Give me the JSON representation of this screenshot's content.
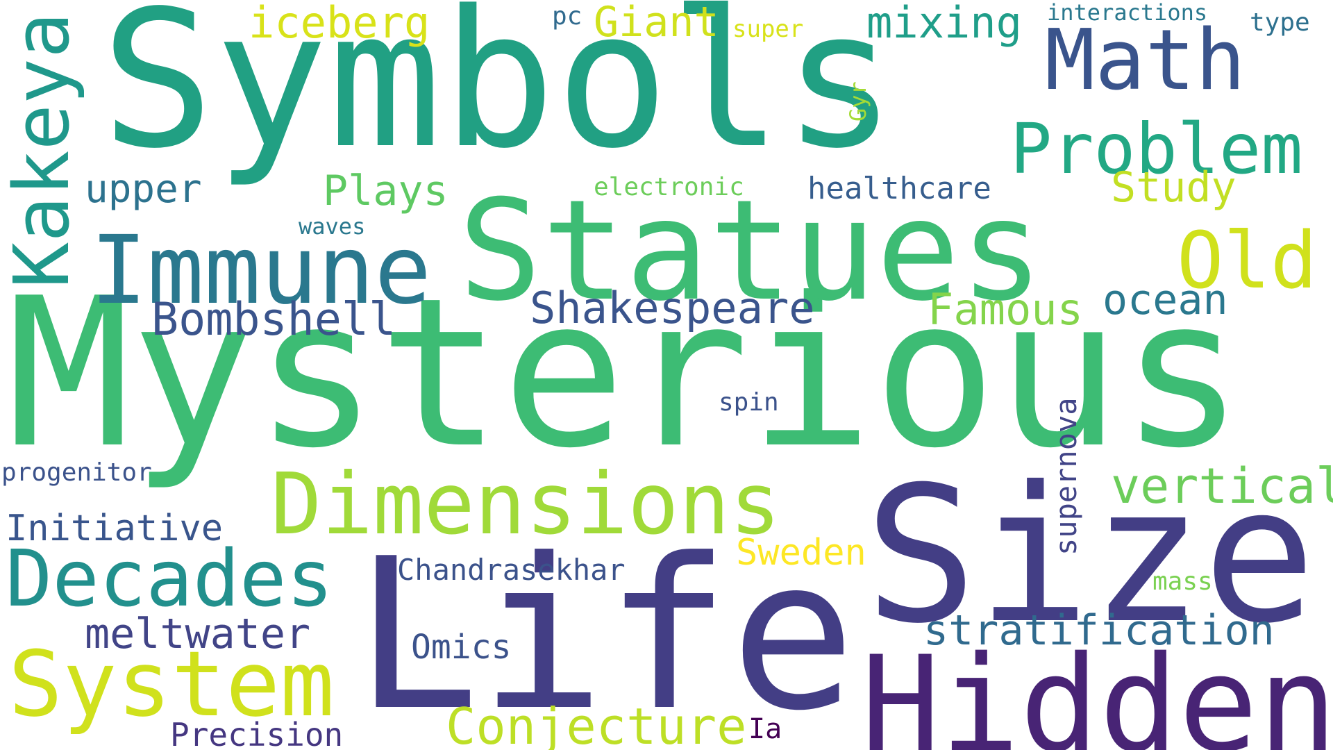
{
  "words": [
    {
      "key": "symbols",
      "text": "Symbols",
      "color": "#21a083"
    },
    {
      "key": "mysterious",
      "text": "Mysterious",
      "color": "#3dbc74"
    },
    {
      "key": "size",
      "text": "Size",
      "color": "#433e85"
    },
    {
      "key": "life",
      "text": "Life",
      "color": "#433e85"
    },
    {
      "key": "hidden",
      "text": "Hidden",
      "color": "#482475"
    },
    {
      "key": "statues",
      "text": "Statues",
      "color": "#3dbc74"
    },
    {
      "key": "dimensions",
      "text": "Dimensions",
      "color": "#a0da39"
    },
    {
      "key": "immune",
      "text": "Immune",
      "color": "#2a788e"
    },
    {
      "key": "decades",
      "text": "Decades",
      "color": "#22908d"
    },
    {
      "key": "system",
      "text": "System",
      "color": "#d0e11c"
    },
    {
      "key": "math",
      "text": "Math",
      "color": "#3a548c"
    },
    {
      "key": "problem",
      "text": "Problem",
      "color": "#22a884"
    },
    {
      "key": "kakeya",
      "text": "Kakeya",
      "color": "#1f988b"
    },
    {
      "key": "old",
      "text": "Old",
      "color": "#d0e11c"
    },
    {
      "key": "conjecture",
      "text": "Conjecture",
      "color": "#bddf26"
    },
    {
      "key": "vertical",
      "text": "vertical",
      "color": "#6ccd5a"
    },
    {
      "key": "stratification",
      "text": "stratification",
      "color": "#306a8e"
    },
    {
      "key": "bombshell",
      "text": "Bombshell",
      "color": "#3a548c"
    },
    {
      "key": "shakespeare",
      "text": "Shakespeare",
      "color": "#3a548c"
    },
    {
      "key": "meltwater",
      "text": "meltwater",
      "color": "#414487"
    },
    {
      "key": "initiative",
      "text": "Initiative",
      "color": "#39558c"
    },
    {
      "key": "famous",
      "text": "Famous",
      "color": "#84d44b"
    },
    {
      "key": "ocean",
      "text": "ocean",
      "color": "#2a788e"
    },
    {
      "key": "mixing",
      "text": "mixing",
      "color": "#1f9e89"
    },
    {
      "key": "iceberg",
      "text": "iceberg",
      "color": "#d8e219"
    },
    {
      "key": "giant",
      "text": "Giant",
      "color": "#d0e11c"
    },
    {
      "key": "study",
      "text": "Study",
      "color": "#c2df23"
    },
    {
      "key": "upper",
      "text": "upper",
      "color": "#2c728e"
    },
    {
      "key": "plays",
      "text": "Plays",
      "color": "#5ec962"
    },
    {
      "key": "healthcare",
      "text": "healthcare",
      "color": "#365d8d"
    },
    {
      "key": "sweden",
      "text": "Sweden",
      "color": "#fde725"
    },
    {
      "key": "chandrasekhar",
      "text": "Chandrasekhar",
      "color": "#3b528b"
    },
    {
      "key": "supernova",
      "text": "supernova",
      "color": "#414487"
    },
    {
      "key": "omics",
      "text": "Omics",
      "color": "#3b528b"
    },
    {
      "key": "precision",
      "text": "Precision",
      "color": "#453781"
    },
    {
      "key": "progenitor",
      "text": "progenitor",
      "color": "#3b528b"
    },
    {
      "key": "electronic",
      "text": "electronic",
      "color": "#6ccd5a"
    },
    {
      "key": "interactions",
      "text": "interactions",
      "color": "#2a788e"
    },
    {
      "key": "type",
      "text": "type",
      "color": "#2d708e"
    },
    {
      "key": "pc",
      "text": "pc",
      "color": "#306a8e"
    },
    {
      "key": "super",
      "text": "super",
      "color": "#d8e219"
    },
    {
      "key": "waves",
      "text": "waves",
      "color": "#2a788e"
    },
    {
      "key": "spin",
      "text": "spin",
      "color": "#3b528b"
    },
    {
      "key": "mass",
      "text": "mass",
      "color": "#7ad151"
    },
    {
      "key": "gyr",
      "text": "Gyr",
      "color": "#a5db36"
    },
    {
      "key": "ia",
      "text": "Ia",
      "color": "#440154"
    }
  ]
}
